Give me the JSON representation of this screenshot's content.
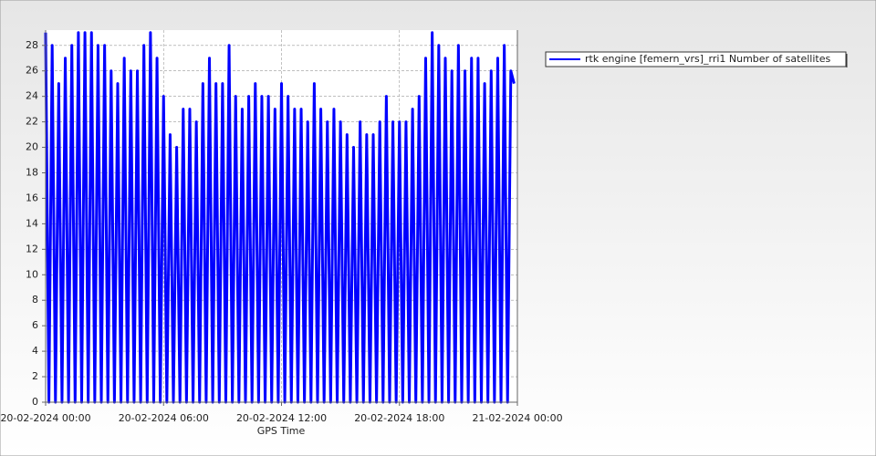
{
  "chart_data": {
    "type": "line",
    "x_label": "GPS Time",
    "x": [
      "20-02-2024 00:00",
      "20-02-2024 00:10",
      "20-02-2024 00:20",
      "20-02-2024 00:30",
      "20-02-2024 00:40",
      "20-02-2024 00:50",
      "20-02-2024 01:00",
      "20-02-2024 01:10",
      "20-02-2024 01:20",
      "20-02-2024 01:30",
      "20-02-2024 01:40",
      "20-02-2024 01:50",
      "20-02-2024 02:00",
      "20-02-2024 02:10",
      "20-02-2024 02:20",
      "20-02-2024 02:30",
      "20-02-2024 02:40",
      "20-02-2024 02:50",
      "20-02-2024 03:00",
      "20-02-2024 03:10",
      "20-02-2024 03:20",
      "20-02-2024 03:30",
      "20-02-2024 03:40",
      "20-02-2024 03:50",
      "20-02-2024 04:00",
      "20-02-2024 04:10",
      "20-02-2024 04:20",
      "20-02-2024 04:30",
      "20-02-2024 04:40",
      "20-02-2024 04:50",
      "20-02-2024 05:00",
      "20-02-2024 05:10",
      "20-02-2024 05:20",
      "20-02-2024 05:30",
      "20-02-2024 05:40",
      "20-02-2024 05:50",
      "20-02-2024 06:00",
      "20-02-2024 06:10",
      "20-02-2024 06:20",
      "20-02-2024 06:30",
      "20-02-2024 06:40",
      "20-02-2024 06:50",
      "20-02-2024 07:00",
      "20-02-2024 07:10",
      "20-02-2024 07:20",
      "20-02-2024 07:30",
      "20-02-2024 07:40",
      "20-02-2024 07:50",
      "20-02-2024 08:00",
      "20-02-2024 08:10",
      "20-02-2024 08:20",
      "20-02-2024 08:30",
      "20-02-2024 08:40",
      "20-02-2024 08:50",
      "20-02-2024 09:00",
      "20-02-2024 09:10",
      "20-02-2024 09:20",
      "20-02-2024 09:30",
      "20-02-2024 09:40",
      "20-02-2024 09:50",
      "20-02-2024 10:00",
      "20-02-2024 10:10",
      "20-02-2024 10:20",
      "20-02-2024 10:30",
      "20-02-2024 10:40",
      "20-02-2024 10:50",
      "20-02-2024 11:00",
      "20-02-2024 11:10",
      "20-02-2024 11:20",
      "20-02-2024 11:30",
      "20-02-2024 11:40",
      "20-02-2024 11:50",
      "20-02-2024 12:00",
      "20-02-2024 12:10",
      "20-02-2024 12:20",
      "20-02-2024 12:30",
      "20-02-2024 12:40",
      "20-02-2024 12:50",
      "20-02-2024 13:00",
      "20-02-2024 13:10",
      "20-02-2024 13:20",
      "20-02-2024 13:30",
      "20-02-2024 13:40",
      "20-02-2024 13:50",
      "20-02-2024 14:00",
      "20-02-2024 14:10",
      "20-02-2024 14:20",
      "20-02-2024 14:30",
      "20-02-2024 14:40",
      "20-02-2024 14:50",
      "20-02-2024 15:00",
      "20-02-2024 15:10",
      "20-02-2024 15:20",
      "20-02-2024 15:30",
      "20-02-2024 15:40",
      "20-02-2024 15:50",
      "20-02-2024 16:00",
      "20-02-2024 16:10",
      "20-02-2024 16:20",
      "20-02-2024 16:30",
      "20-02-2024 16:40",
      "20-02-2024 16:50",
      "20-02-2024 17:00",
      "20-02-2024 17:10",
      "20-02-2024 17:20",
      "20-02-2024 17:30",
      "20-02-2024 17:40",
      "20-02-2024 17:50",
      "20-02-2024 18:00",
      "20-02-2024 18:10",
      "20-02-2024 18:20",
      "20-02-2024 18:30",
      "20-02-2024 18:40",
      "20-02-2024 18:50",
      "20-02-2024 19:00",
      "20-02-2024 19:10",
      "20-02-2024 19:20",
      "20-02-2024 19:30",
      "20-02-2024 19:40",
      "20-02-2024 19:50",
      "20-02-2024 20:00",
      "20-02-2024 20:10",
      "20-02-2024 20:20",
      "20-02-2024 20:30",
      "20-02-2024 20:40",
      "20-02-2024 20:50",
      "20-02-2024 21:00",
      "20-02-2024 21:10",
      "20-02-2024 21:20",
      "20-02-2024 21:30",
      "20-02-2024 21:40",
      "20-02-2024 21:50",
      "20-02-2024 22:00",
      "20-02-2024 22:10",
      "20-02-2024 22:20",
      "20-02-2024 22:30",
      "20-02-2024 22:40",
      "20-02-2024 22:50",
      "20-02-2024 23:00",
      "20-02-2024 23:10",
      "20-02-2024 23:20",
      "20-02-2024 23:30",
      "20-02-2024 23:40",
      "20-02-2024 23:50"
    ],
    "series": [
      {
        "name": "rtk engine [femern_vrs]_rri1 Number of satellites",
        "color": "#0000ff",
        "values": [
          29,
          0,
          28,
          0,
          25,
          0,
          27,
          0,
          28,
          0,
          29,
          0,
          29,
          0,
          29,
          0,
          28,
          0,
          28,
          0,
          26,
          0,
          25,
          0,
          27,
          0,
          26,
          0,
          26,
          0,
          28,
          0,
          29,
          0,
          27,
          0,
          24,
          0,
          21,
          0,
          20,
          0,
          23,
          0,
          23,
          0,
          22,
          0,
          25,
          0,
          27,
          0,
          25,
          0,
          25,
          0,
          28,
          0,
          24,
          0,
          23,
          0,
          24,
          0,
          25,
          0,
          24,
          0,
          24,
          0,
          23,
          0,
          25,
          0,
          24,
          0,
          23,
          0,
          23,
          0,
          22,
          0,
          25,
          0,
          23,
          0,
          22,
          0,
          23,
          0,
          22,
          0,
          21,
          0,
          20,
          0,
          22,
          0,
          21,
          0,
          21,
          0,
          22,
          0,
          24,
          0,
          22,
          0,
          22,
          0,
          22,
          0,
          23,
          0,
          24,
          0,
          27,
          0,
          29,
          0,
          28,
          0,
          27,
          0,
          26,
          0,
          28,
          0,
          26,
          0,
          27,
          0,
          27,
          0,
          25,
          0,
          26,
          0,
          27,
          0,
          28,
          0,
          26,
          25
        ]
      }
    ],
    "xlim": [
      "20-02-2024 00:00",
      "21-02-2024 00:00"
    ],
    "xticks": [
      "20-02-2024 00:00",
      "20-02-2024 06:00",
      "20-02-2024 12:00",
      "20-02-2024 18:00",
      "21-02-2024 00:00"
    ],
    "ylim": [
      0,
      29.2
    ],
    "yticks": [
      0,
      2,
      4,
      6,
      8,
      10,
      12,
      14,
      16,
      18,
      20,
      22,
      24,
      26,
      28
    ],
    "grid": true
  }
}
